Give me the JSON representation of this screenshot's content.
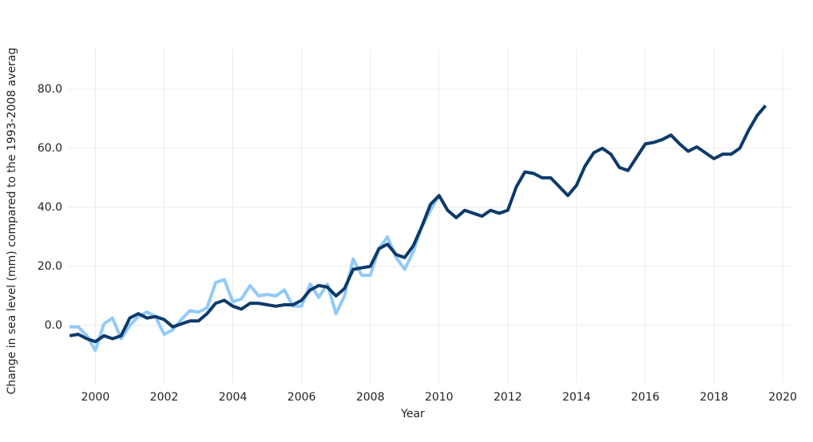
{
  "chart_data": {
    "type": "line",
    "x_label": "Year",
    "y_label": "Change in sea level (mm) compared to the 1993-2008 averag",
    "x": [
      1999.25,
      1999.5,
      1999.75,
      2000.0,
      2000.25,
      2000.5,
      2000.75,
      2001.0,
      2001.25,
      2001.5,
      2001.75,
      2002.0,
      2002.25,
      2002.5,
      2002.75,
      2003.0,
      2003.25,
      2003.5,
      2003.75,
      2004.0,
      2004.25,
      2004.5,
      2004.75,
      2005.0,
      2005.25,
      2005.5,
      2005.75,
      2006.0,
      2006.25,
      2006.5,
      2006.75,
      2007.0,
      2007.25,
      2007.5,
      2007.75,
      2008.0,
      2008.25,
      2008.5,
      2008.75,
      2009.0,
      2009.25,
      2009.5,
      2009.75,
      2010.0,
      2010.25,
      2010.5,
      2010.75,
      2011.0,
      2011.25,
      2011.5,
      2011.75,
      2012.0,
      2012.25,
      2012.5,
      2012.75,
      2013.0,
      2013.25,
      2013.5,
      2013.75,
      2014.0,
      2014.25,
      2014.5,
      2014.75,
      2015.0,
      2015.25,
      2015.5,
      2015.75,
      2016.0,
      2016.25,
      2016.5,
      2016.75,
      2017.0,
      2017.25,
      2017.5,
      2017.75,
      2018.0,
      2018.25,
      2018.5,
      2018.75,
      2019.0,
      2019.25,
      2019.5
    ],
    "series": [
      {
        "color": "#90caf9",
        "values": [
          -0.5,
          -0.5,
          -3.5,
          -8.5,
          0.5,
          2.5,
          -4.5,
          0,
          3,
          4.5,
          3,
          -3,
          -1.5,
          2,
          5,
          4.5,
          6,
          14.5,
          15.5,
          8,
          9,
          13.5,
          10,
          10.5,
          10,
          12,
          6.5,
          6.5,
          14,
          9.5,
          14,
          4,
          10,
          22.5,
          17,
          17,
          26,
          30,
          23,
          19,
          25,
          33.5,
          39,
          44,
          null,
          null,
          null,
          null,
          null,
          null,
          null,
          null,
          null,
          null,
          null,
          null,
          null,
          null,
          null,
          null,
          null,
          null,
          null,
          null,
          null,
          null,
          null,
          null,
          null,
          null,
          null,
          null,
          null,
          null,
          null,
          null,
          null,
          null,
          null,
          null,
          null,
          null
        ]
      },
      {
        "color": "#0d3a6b",
        "values": [
          -3.5,
          -3,
          -4.5,
          -5.5,
          -3.5,
          -4.5,
          -3.5,
          2.5,
          4,
          2.5,
          3,
          2,
          -0.5,
          0.5,
          1.5,
          1.5,
          4,
          7.5,
          8.5,
          6.5,
          5.5,
          7.5,
          7.5,
          7,
          6.5,
          7,
          7,
          8.5,
          12,
          13.5,
          13,
          10,
          12.5,
          19,
          19.5,
          20,
          26,
          27.5,
          24,
          23,
          27,
          33.5,
          41,
          44,
          39,
          36.5,
          39,
          38,
          37,
          39,
          38,
          39,
          47,
          52,
          51.5,
          50,
          50,
          47,
          44,
          47.5,
          54,
          58.5,
          60,
          58,
          53.5,
          52.5,
          57,
          61.5,
          62,
          63,
          64.5,
          61.5,
          59,
          60.5,
          58.5,
          56.5,
          58,
          58,
          60,
          66,
          71,
          74.5
        ]
      }
    ],
    "xlim": [
      1999.2,
      2020.3
    ],
    "ylim": [
      -19.5,
      93.5
    ],
    "xticks": [
      2000,
      2002,
      2004,
      2006,
      2008,
      2010,
      2012,
      2014,
      2016,
      2018,
      2020
    ],
    "yticks": [
      {
        "value": 0,
        "label": "0.0"
      },
      {
        "value": 20,
        "label": "20.0"
      },
      {
        "value": 40,
        "label": "40.0"
      },
      {
        "value": 60,
        "label": "60.0"
      },
      {
        "value": 80,
        "label": "80.0"
      }
    ],
    "grid": true
  }
}
